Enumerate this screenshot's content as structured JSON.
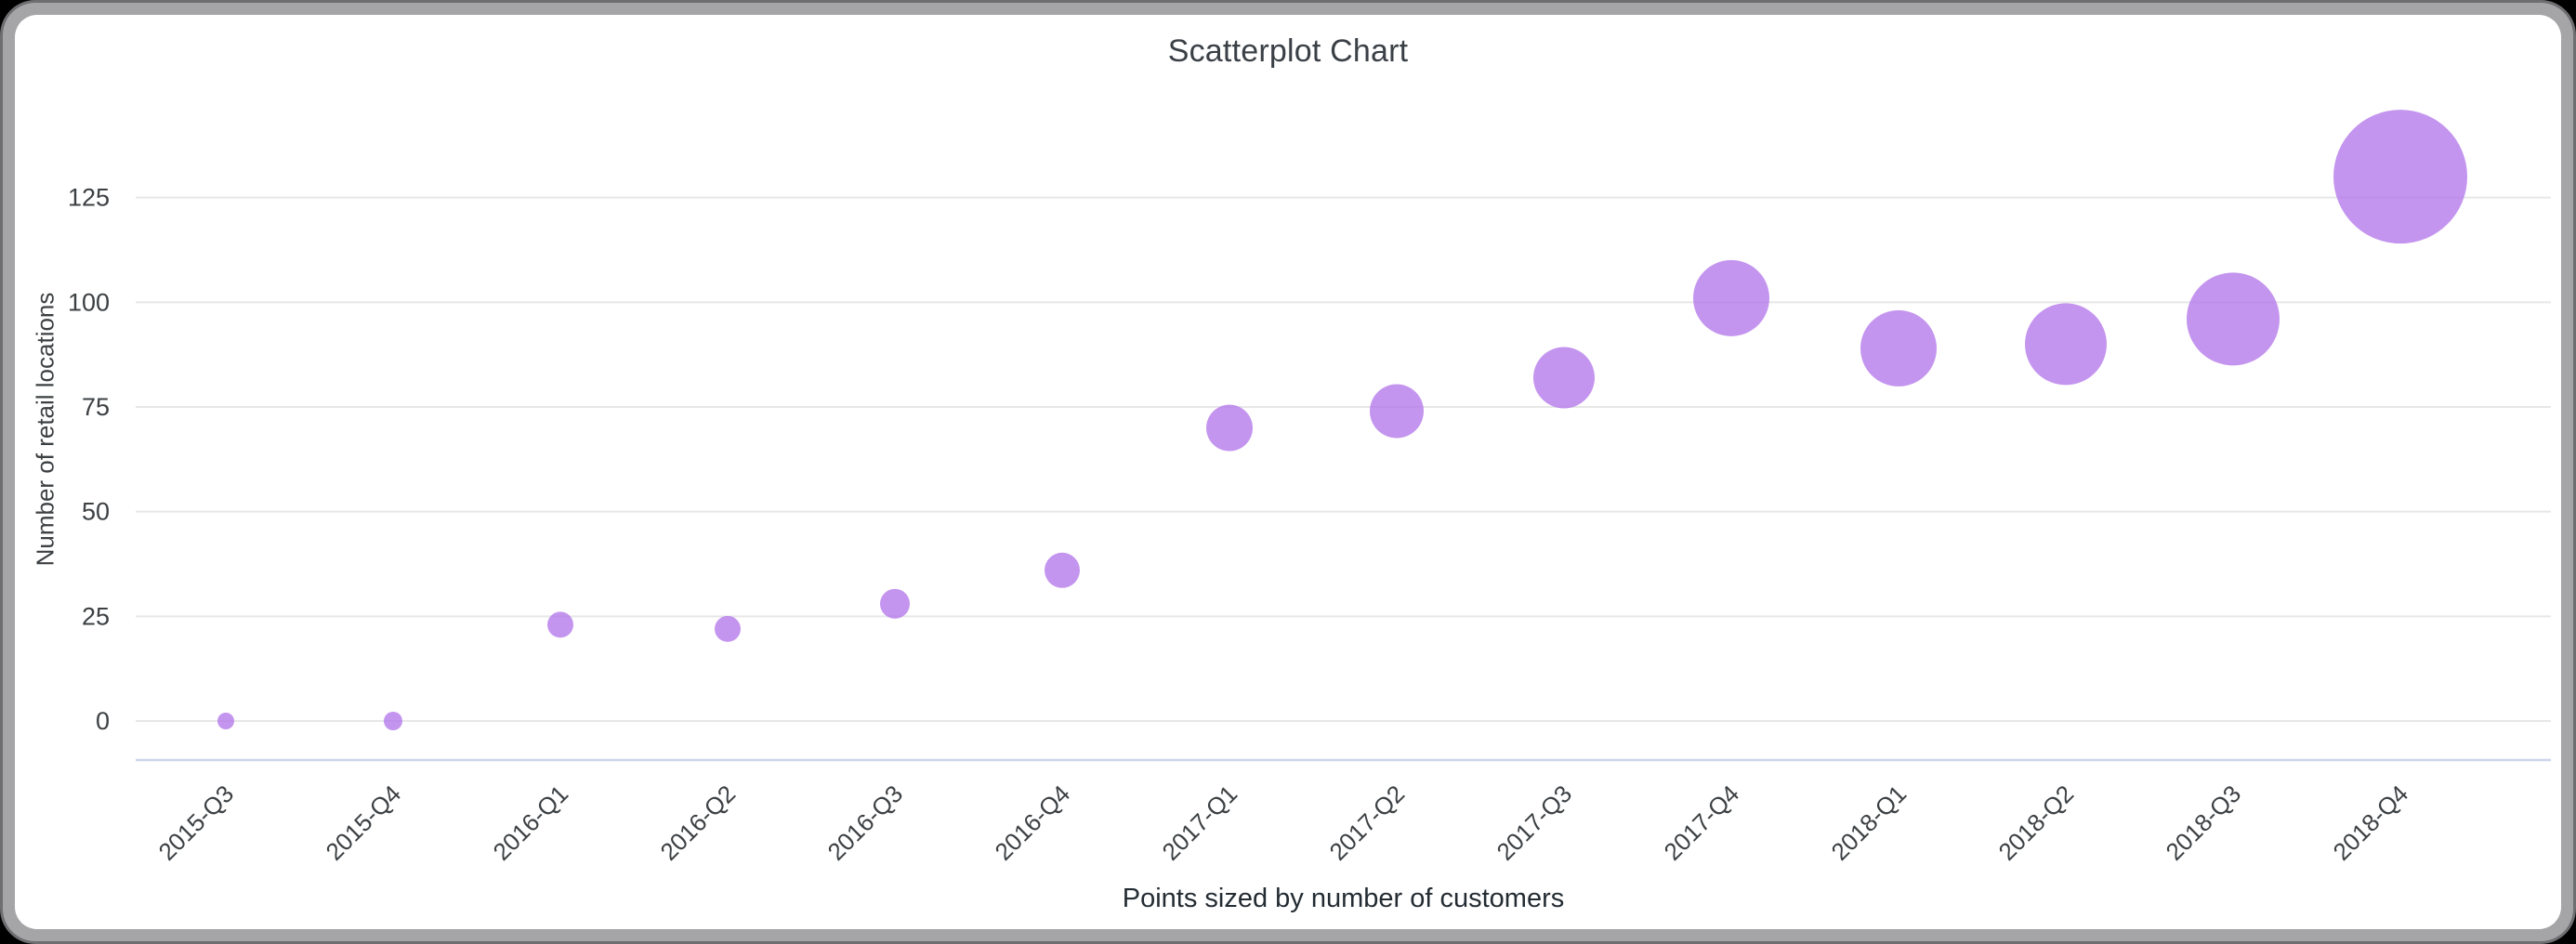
{
  "window": {
    "background_color": "#000000",
    "frame_edge_color": "#6e6e71",
    "frame_color": "#a5a5a8",
    "card_color": "#ffffff"
  },
  "chart_data": {
    "type": "scatter",
    "title": "Scatterplot Chart",
    "ylabel": "Number of retail locations",
    "caption": "Points sized by number of customers",
    "categories": [
      "2015-Q3",
      "2015-Q4",
      "2016-Q1",
      "2016-Q2",
      "2016-Q3",
      "2016-Q4",
      "2017-Q1",
      "2017-Q2",
      "2017-Q3",
      "2017-Q4",
      "2018-Q1",
      "2018-Q2",
      "2018-Q3",
      "2018-Q4"
    ],
    "series": [
      {
        "name": "Number of retail locations",
        "values": [
          0,
          0,
          23,
          22,
          28,
          36,
          70,
          74,
          82,
          101,
          89,
          90,
          96,
          130
        ],
        "bubble_radius_px": [
          9,
          10,
          14,
          14,
          16,
          19,
          25,
          29,
          33,
          41,
          41,
          44,
          50,
          72
        ]
      }
    ],
    "yticks": [
      0,
      25,
      50,
      75,
      100,
      125
    ],
    "ylim": [
      0,
      140
    ],
    "grid": true,
    "legend_position": "none",
    "theme": {
      "point_color": "#b377eb",
      "point_opacity": 0.78,
      "grid_color": "#e7e7e7",
      "baseline_color": "#ccd6ea",
      "tick_label_color": "#3c4043",
      "title_color": "#3a4046",
      "caption_color": "#242c33"
    }
  }
}
